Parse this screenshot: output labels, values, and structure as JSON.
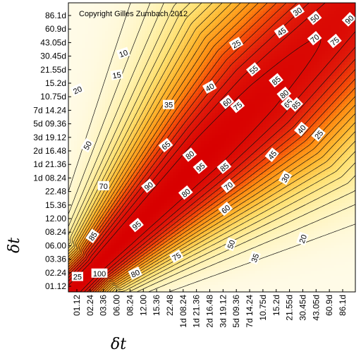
{
  "chart_data": {
    "type": "heatmap",
    "title": "",
    "copyright": "Copyright Gilles Zumbach 2012",
    "xlabel": "δt",
    "ylabel": "δt",
    "x_ticks": [
      "01.12",
      "02.24",
      "03.36",
      "06.00",
      "08.24",
      "12.00",
      "15.36",
      "22.48",
      "1d 08.24",
      "1d 21.36",
      "2d 16.48",
      "3d 19.12",
      "5d 09.36",
      "7d 14.24",
      "10.75d",
      "15.2d",
      "21.55d",
      "30.45d",
      "43.05d",
      "60.9d",
      "86.1d"
    ],
    "y_ticks": [
      "01.12",
      "02.24",
      "03.36",
      "06.00",
      "08.24",
      "12.00",
      "15.36",
      "22.48",
      "1d 08.24",
      "1d 21.36",
      "2d 16.48",
      "3d 19.12",
      "5d 09.36",
      "7d 14.24",
      "10.75d",
      "15.2d",
      "21.55d",
      "30.45d",
      "43.05d",
      "60.9d",
      "86.1d"
    ],
    "contour_levels": [
      5,
      10,
      15,
      20,
      25,
      30,
      35,
      40,
      45,
      50,
      55,
      60,
      65,
      70,
      75,
      80,
      85,
      90,
      95,
      100
    ],
    "value_range": [
      0,
      100
    ],
    "colormap": [
      "#fffbe8",
      "#fff2b0",
      "#ffe070",
      "#ffb830",
      "#ff8a10",
      "#f44a08",
      "#e01a0a",
      "#d80000"
    ],
    "contour_labels": [
      {
        "text": "10",
        "xi": 3.5,
        "yi": 17.2,
        "angle": -20
      },
      {
        "text": "15",
        "xi": 3.0,
        "yi": 15.6,
        "angle": -10
      },
      {
        "text": "20",
        "xi": 0.05,
        "yi": 14.5,
        "angle": -25
      },
      {
        "text": "25",
        "xi": 12.0,
        "yi": 17.9,
        "angle": -30
      },
      {
        "text": "30",
        "xi": 16.6,
        "yi": 20.3,
        "angle": -35
      },
      {
        "text": "35",
        "xi": 6.9,
        "yi": 13.4,
        "angle": 0
      },
      {
        "text": "40",
        "xi": 10.0,
        "yi": 14.7,
        "angle": -30
      },
      {
        "text": "45",
        "xi": 15.4,
        "yi": 18.8,
        "angle": -35
      },
      {
        "text": "50",
        "xi": 17.9,
        "yi": 19.8,
        "angle": -40
      },
      {
        "text": "50",
        "xi": 0.8,
        "yi": 10.4,
        "angle": -60
      },
      {
        "text": "55",
        "xi": 13.3,
        "yi": 16.0,
        "angle": -40
      },
      {
        "text": "60",
        "xi": 11.3,
        "yi": 13.6,
        "angle": -40
      },
      {
        "text": "65",
        "xi": 6.7,
        "yi": 10.4,
        "angle": -40
      },
      {
        "text": "70",
        "xi": 17.9,
        "yi": 18.3,
        "angle": -40
      },
      {
        "text": "70",
        "xi": 2.0,
        "yi": 7.4,
        "angle": 0
      },
      {
        "text": "75",
        "xi": 12.1,
        "yi": 13.3,
        "angle": -40
      },
      {
        "text": "75",
        "xi": 19.4,
        "yi": 18.1,
        "angle": -40
      },
      {
        "text": "80",
        "xi": 8.5,
        "yi": 9.7,
        "angle": -40
      },
      {
        "text": "80",
        "xi": 15.6,
        "yi": 14.2,
        "angle": -40
      },
      {
        "text": "85",
        "xi": 15.0,
        "yi": 15.2,
        "angle": -40
      },
      {
        "text": "85",
        "xi": 11.1,
        "yi": 8.8,
        "angle": -40
      },
      {
        "text": "85",
        "xi": 1.2,
        "yi": 3.7,
        "angle": -55
      },
      {
        "text": "90",
        "xi": 5.4,
        "yi": 7.4,
        "angle": -40
      },
      {
        "text": "95",
        "xi": 9.3,
        "yi": 8.8,
        "angle": -40
      },
      {
        "text": "95",
        "xi": 4.5,
        "yi": 4.5,
        "angle": -40
      },
      {
        "text": "65",
        "xi": 15.9,
        "yi": 13.5,
        "angle": -45
      },
      {
        "text": "85",
        "xi": 16.5,
        "yi": 13.4,
        "angle": -45
      },
      {
        "text": "70",
        "xi": 11.4,
        "yi": 7.4,
        "angle": -40
      },
      {
        "text": "80",
        "xi": 8.2,
        "yi": 6.9,
        "angle": -40
      },
      {
        "text": "90",
        "xi": 20.5,
        "yi": 19.7,
        "angle": -45
      },
      {
        "text": "60",
        "xi": 11.2,
        "yi": 5.7,
        "angle": -40
      },
      {
        "text": "45",
        "xi": 14.7,
        "yi": 9.7,
        "angle": -50
      },
      {
        "text": "40",
        "xi": 16.9,
        "yi": 11.6,
        "angle": -50
      },
      {
        "text": "25",
        "xi": 18.2,
        "yi": 11.2,
        "angle": -50
      },
      {
        "text": "30",
        "xi": 15.7,
        "yi": 8.0,
        "angle": -60
      },
      {
        "text": "50",
        "xi": 11.6,
        "yi": 3.1,
        "angle": -70
      },
      {
        "text": "35",
        "xi": 13.4,
        "yi": 2.1,
        "angle": -70
      },
      {
        "text": "20",
        "xi": 17.0,
        "yi": 3.5,
        "angle": -70
      },
      {
        "text": "75",
        "xi": 7.5,
        "yi": 2.2,
        "angle": -30
      },
      {
        "text": "80",
        "xi": 4.4,
        "yi": 0.95,
        "angle": -25
      },
      {
        "text": "100",
        "xi": 1.7,
        "yi": 0.95,
        "angle": 0
      },
      {
        "text": "25",
        "xi": 0.05,
        "yi": 0.7,
        "angle": 0
      }
    ]
  }
}
